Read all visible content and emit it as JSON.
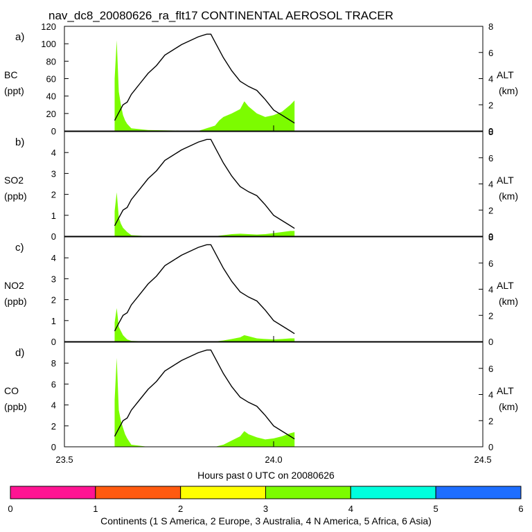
{
  "title": "nav_dc8_20080626_ra_flt17 CONTINENTAL AEROSOL TRACER",
  "xlabel": "Hours past 0 UTC on 20080626",
  "colorbar": {
    "label": "Continents (1 S America, 2 Europe, 3 Australia, 4 N America, 5 Africa, 6 Asia)",
    "ticks": [
      "0",
      "1",
      "2",
      "3",
      "4",
      "5",
      "6"
    ],
    "colors": [
      "#ff1493",
      "#ff5a10",
      "#ffff00",
      "#7cfc00",
      "#00ffdd",
      "#1e6eff"
    ]
  },
  "chart_data": {
    "type": "area",
    "xlim": [
      23.5,
      24.5
    ],
    "xticks": [
      "23.5",
      "24.0",
      "24.5"
    ],
    "altitude_km": {
      "x": [
        23.62,
        23.63,
        23.64,
        23.65,
        23.66,
        23.68,
        23.7,
        23.72,
        23.74,
        23.76,
        23.78,
        23.8,
        23.82,
        23.84,
        23.85,
        23.86,
        23.88,
        23.9,
        23.92,
        23.94,
        23.96,
        23.98,
        24.0,
        24.02,
        24.04,
        24.05
      ],
      "y": [
        0.8,
        1.4,
        2.0,
        2.2,
        2.8,
        3.6,
        4.4,
        5.0,
        5.8,
        6.2,
        6.6,
        6.9,
        7.2,
        7.4,
        7.4,
        6.8,
        5.6,
        4.6,
        3.8,
        3.4,
        3.1,
        2.4,
        1.6,
        1.2,
        0.8,
        0.6
      ]
    },
    "panels": [
      {
        "letter": "a)",
        "ylabel": "BC",
        "unit": "(ppt)",
        "ylim": [
          0,
          120
        ],
        "yticks": [
          0,
          20,
          40,
          60,
          80,
          100,
          120
        ],
        "alt_ylim": [
          0,
          8
        ],
        "alt_ticks": [
          0,
          2,
          4,
          6,
          8
        ],
        "series_name": "N America",
        "x": [
          23.62,
          23.625,
          23.63,
          23.635,
          23.64,
          23.645,
          23.65,
          23.66,
          23.7,
          23.82,
          23.86,
          23.87,
          23.88,
          23.9,
          23.92,
          23.93,
          23.94,
          23.96,
          23.98,
          24.0,
          24.02,
          24.04,
          24.05
        ],
        "y": [
          60,
          104,
          45,
          30,
          18,
          12,
          8,
          3,
          1,
          0,
          6,
          12,
          16,
          20,
          25,
          34,
          28,
          20,
          16,
          18,
          22,
          30,
          35
        ]
      },
      {
        "letter": "b)",
        "ylabel": "SO2",
        "unit": "(ppb)",
        "ylim": [
          0,
          5
        ],
        "yticks": [
          0,
          1,
          2,
          3,
          4
        ],
        "alt_ylim": [
          0,
          8
        ],
        "alt_ticks": [
          0,
          2,
          4,
          6,
          8
        ],
        "series_name": "N America",
        "x": [
          23.62,
          23.625,
          23.63,
          23.635,
          23.64,
          23.645,
          23.65,
          23.66,
          23.7,
          23.86,
          23.88,
          23.9,
          23.92,
          23.94,
          23.96,
          23.98,
          24.0,
          24.02,
          24.04,
          24.05
        ],
        "y": [
          1.2,
          2.1,
          0.9,
          0.6,
          0.4,
          0.3,
          0.2,
          0.05,
          0,
          0,
          0.05,
          0.1,
          0.12,
          0.1,
          0.08,
          0.1,
          0.15,
          0.2,
          0.25,
          0.25
        ]
      },
      {
        "letter": "c)",
        "ylabel": "NO2",
        "unit": "(ppb)",
        "ylim": [
          0,
          5
        ],
        "yticks": [
          0,
          1,
          2,
          3,
          4
        ],
        "alt_ylim": [
          0,
          8
        ],
        "alt_ticks": [
          0,
          2,
          4,
          6,
          8
        ],
        "series_name": "N America",
        "x": [
          23.62,
          23.625,
          23.63,
          23.635,
          23.64,
          23.645,
          23.65,
          23.66,
          23.7,
          23.86,
          23.88,
          23.9,
          23.92,
          23.93,
          23.94,
          23.96,
          23.98,
          24.0,
          24.02,
          24.04,
          24.05
        ],
        "y": [
          0.9,
          1.6,
          0.7,
          0.5,
          0.3,
          0.2,
          0.1,
          0.03,
          0,
          0,
          0.05,
          0.12,
          0.2,
          0.3,
          0.25,
          0.15,
          0.12,
          0.1,
          0.12,
          0.15,
          0.15
        ]
      },
      {
        "letter": "d)",
        "ylabel": "CO",
        "unit": "(ppb)",
        "ylim": [
          0,
          10
        ],
        "yticks": [
          0,
          2,
          4,
          6,
          8
        ],
        "alt_ylim": [
          0,
          8
        ],
        "alt_ticks": [
          0,
          2,
          4,
          6
        ],
        "series_name": "N America",
        "x": [
          23.62,
          23.625,
          23.63,
          23.635,
          23.64,
          23.645,
          23.65,
          23.66,
          23.7,
          23.86,
          23.88,
          23.9,
          23.92,
          23.93,
          23.94,
          23.96,
          23.98,
          24.0,
          24.02,
          24.04,
          24.05
        ],
        "y": [
          4.5,
          8.5,
          3.5,
          2.5,
          1.8,
          1.2,
          0.8,
          0.2,
          0,
          0,
          0.2,
          0.6,
          1.0,
          1.5,
          1.2,
          0.9,
          0.7,
          0.8,
          1.0,
          1.3,
          1.4
        ]
      }
    ]
  }
}
